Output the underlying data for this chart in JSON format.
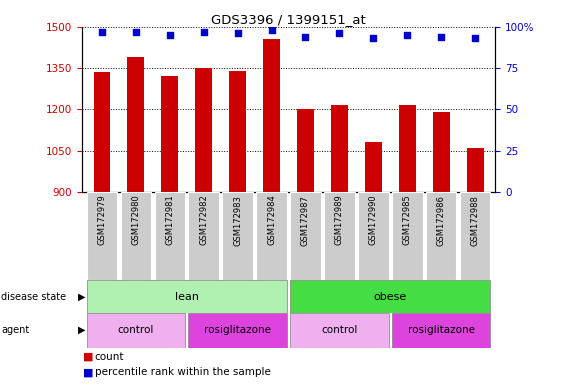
{
  "title": "GDS3396 / 1399151_at",
  "samples": [
    "GSM172979",
    "GSM172980",
    "GSM172981",
    "GSM172982",
    "GSM172983",
    "GSM172984",
    "GSM172987",
    "GSM172989",
    "GSM172990",
    "GSM172985",
    "GSM172986",
    "GSM172988"
  ],
  "counts": [
    1335,
    1390,
    1320,
    1350,
    1340,
    1455,
    1200,
    1215,
    1080,
    1215,
    1190,
    1060
  ],
  "percentile_ranks": [
    97,
    97,
    95,
    97,
    96,
    98,
    94,
    96,
    93,
    95,
    94,
    93
  ],
  "ylim_left": [
    900,
    1500
  ],
  "ylim_right": [
    0,
    100
  ],
  "yticks_left": [
    900,
    1050,
    1200,
    1350,
    1500
  ],
  "yticks_right": [
    0,
    25,
    50,
    75,
    100
  ],
  "bar_color": "#cc0000",
  "dot_color": "#0000cc",
  "lean_color": "#b0f0b0",
  "obese_color": "#44dd44",
  "control_color": "#f0b0f0",
  "rosiglitazone_color": "#dd44dd",
  "tick_bg_color": "#cccccc",
  "xlabel_color": "#cc0000",
  "ylabel_right_color": "#0000cc",
  "legend_count_color": "#cc0000",
  "legend_dot_color": "#0000cc"
}
